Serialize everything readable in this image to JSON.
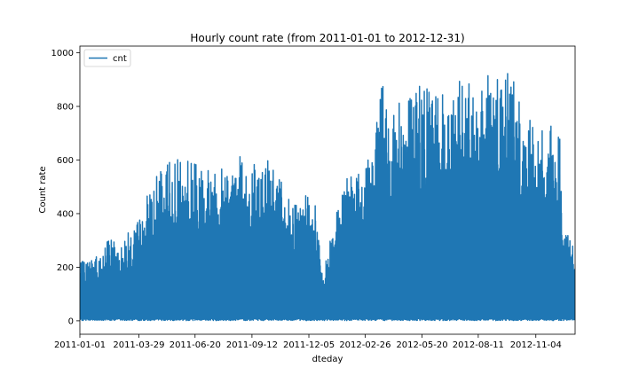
{
  "chart_data": {
    "type": "line",
    "title": "Hourly count rate (from 2011-01-01 to 2012-12-31)",
    "xlabel": "dteday",
    "ylabel": "Count rate",
    "x_range": [
      "2011-01-01",
      "2012-12-31"
    ],
    "ylim": [
      -50,
      1025
    ],
    "y_ticks": [
      0,
      200,
      400,
      600,
      800,
      1000
    ],
    "x_ticks": [
      "2011-01-01",
      "2011-03-29",
      "2011-06-20",
      "2011-09-12",
      "2011-12-05",
      "2012-02-26",
      "2012-05-20",
      "2012-08-11",
      "2012-11-04"
    ],
    "grid": false,
    "legend_position": "top-left",
    "series": [
      {
        "name": "cnt",
        "color": "#1f77b4",
        "resolution": "hourly",
        "daily_peak_envelope": [
          [
            "2011-01-01",
            215
          ],
          [
            "2011-01-15",
            240
          ],
          [
            "2011-02-01",
            250
          ],
          [
            "2011-02-15",
            330
          ],
          [
            "2011-03-01",
            300
          ],
          [
            "2011-03-15",
            335
          ],
          [
            "2011-04-01",
            390
          ],
          [
            "2011-04-15",
            530
          ],
          [
            "2011-05-01",
            560
          ],
          [
            "2011-05-15",
            610
          ],
          [
            "2011-06-01",
            610
          ],
          [
            "2011-06-15",
            610
          ],
          [
            "2011-07-01",
            600
          ],
          [
            "2011-07-15",
            560
          ],
          [
            "2011-08-01",
            580
          ],
          [
            "2011-08-15",
            650
          ],
          [
            "2011-09-01",
            625
          ],
          [
            "2011-09-15",
            600
          ],
          [
            "2011-10-01",
            620
          ],
          [
            "2011-10-15",
            580
          ],
          [
            "2011-11-01",
            475
          ],
          [
            "2011-11-15",
            430
          ],
          [
            "2011-12-01",
            470
          ],
          [
            "2011-12-15",
            430
          ],
          [
            "2011-12-26",
            180
          ],
          [
            "2012-01-05",
            340
          ],
          [
            "2012-01-15",
            510
          ],
          [
            "2012-02-01",
            540
          ],
          [
            "2012-02-15",
            550
          ],
          [
            "2012-03-01",
            610
          ],
          [
            "2012-03-15",
            780
          ],
          [
            "2012-03-24",
            960
          ],
          [
            "2012-04-01",
            760
          ],
          [
            "2012-04-15",
            820
          ],
          [
            "2012-05-01",
            860
          ],
          [
            "2012-05-15",
            880
          ],
          [
            "2012-06-01",
            860
          ],
          [
            "2012-06-15",
            880
          ],
          [
            "2012-07-01",
            860
          ],
          [
            "2012-07-15",
            900
          ],
          [
            "2012-08-01",
            880
          ],
          [
            "2012-08-15",
            900
          ],
          [
            "2012-09-01",
            975
          ],
          [
            "2012-09-15",
            960
          ],
          [
            "2012-10-01",
            960
          ],
          [
            "2012-10-15",
            740
          ],
          [
            "2012-11-01",
            760
          ],
          [
            "2012-11-15",
            700
          ],
          [
            "2012-12-01",
            760
          ],
          [
            "2012-12-10",
            680
          ],
          [
            "2012-12-15",
            320
          ],
          [
            "2012-12-31",
            320
          ]
        ],
        "min_value": 1
      }
    ]
  }
}
